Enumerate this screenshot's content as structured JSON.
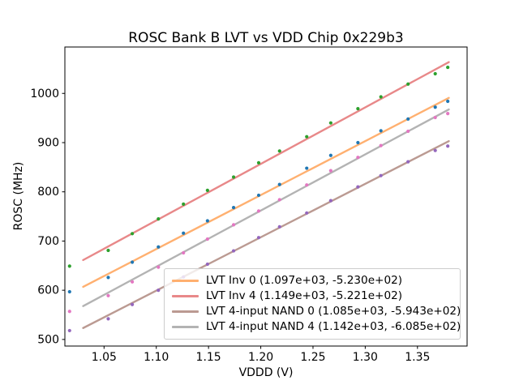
{
  "chart_data": {
    "type": "scatter",
    "title": "ROSC Bank B LVT vs VDD Chip 0x229b3",
    "xlabel": "VDDD (V)",
    "ylabel": "ROSC (MHz)",
    "xlim": [
      1.0125,
      1.3975
    ],
    "ylim": [
      486.6,
      1094.3
    ],
    "xticks": [
      1.05,
      1.1,
      1.15,
      1.2,
      1.25,
      1.3,
      1.35
    ],
    "xtick_labels": [
      "1.05",
      "1.10",
      "1.15",
      "1.20",
      "1.25",
      "1.30",
      "1.35"
    ],
    "yticks": [
      500,
      600,
      700,
      800,
      900,
      1000
    ],
    "ytick_labels": [
      "500",
      "600",
      "700",
      "800",
      "900",
      "1000"
    ],
    "grid": false,
    "legend_position": "inside lower-right of axes",
    "fit_line_x_range": [
      1.03,
      1.38
    ],
    "x": [
      1.017,
      1.054,
      1.077,
      1.102,
      1.126,
      1.149,
      1.174,
      1.198,
      1.218,
      1.244,
      1.267,
      1.293,
      1.315,
      1.341,
      1.367,
      1.379
    ],
    "series": [
      {
        "name": "LVT Inv 0",
        "legend_label": "LVT Inv 0 (1.097e+03, -5.230e+02)",
        "fit_slope": 1097.0,
        "fit_intercept": -523.0,
        "marker_color": "#1f77b4",
        "line_color": "#ffb070",
        "values": [
          597,
          626,
          657,
          688,
          716,
          741,
          768,
          793,
          815,
          848,
          874,
          900,
          924,
          948,
          972,
          984
        ]
      },
      {
        "name": "LVT Inv 4",
        "legend_label": "LVT Inv 4 (1.149e+03, -5.221e+02)",
        "fit_slope": 1149.0,
        "fit_intercept": -522.1,
        "marker_color": "#2ca02c",
        "line_color": "#e88889",
        "values": [
          649,
          681,
          715,
          745,
          775,
          803,
          830,
          859,
          883,
          912,
          940,
          969,
          993,
          1019,
          1040,
          1053
        ]
      },
      {
        "name": "LVT 4-input NAND 0",
        "legend_label": "LVT 4-input NAND 0 (1.085e+03, -5.943e+02)",
        "fit_slope": 1085.0,
        "fit_intercept": -594.3,
        "marker_color": "#9467bd",
        "line_color": "#bb9a92",
        "values": [
          518,
          542,
          571,
          600,
          627,
          653,
          680,
          707,
          729,
          757,
          782,
          810,
          833,
          861,
          884,
          893
        ]
      },
      {
        "name": "LVT 4-input NAND 4",
        "legend_label": "LVT 4-input NAND 4 (1.142e+03, -6.085e+02)",
        "fit_slope": 1142.0,
        "fit_intercept": -608.5,
        "marker_color": "#e377c2",
        "line_color": "#b3b3b3",
        "values": [
          557,
          589,
          617,
          647,
          676,
          704,
          733,
          761,
          784,
          814,
          843,
          870,
          894,
          923,
          951,
          959
        ]
      }
    ]
  }
}
